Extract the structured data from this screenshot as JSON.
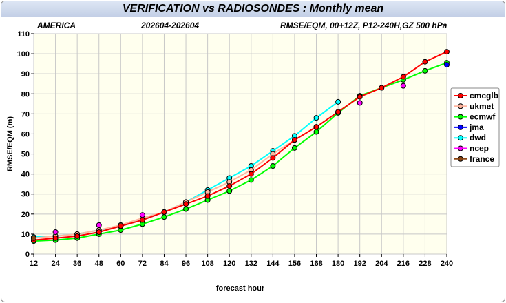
{
  "window": {
    "title": "VERIFICATION vs RADIOSONDES : Monthly mean"
  },
  "chart_data": {
    "type": "line",
    "region": "AMERICA",
    "period": "202604-202604",
    "description": "RMSE/EQM, 00+12Z, P12-240H,GZ 500 hPa",
    "xlabel": "forecast hour",
    "ylabel": "RMSE/EQM (m)",
    "x": [
      12,
      24,
      36,
      48,
      60,
      72,
      84,
      96,
      108,
      120,
      132,
      144,
      156,
      168,
      180,
      192,
      204,
      216,
      228,
      240
    ],
    "xlim": [
      12,
      240
    ],
    "ylim": [
      0,
      110
    ],
    "yticks": [
      0,
      10,
      20,
      30,
      40,
      50,
      60,
      70,
      80,
      90,
      100,
      110
    ],
    "grid": true,
    "legend_position": "right",
    "series": [
      {
        "name": "cmcglb",
        "color": "#ff0000",
        "line": true,
        "values": [
          7,
          8,
          9,
          11,
          14,
          17,
          21,
          25,
          29,
          34,
          40,
          48,
          57,
          63.5,
          71,
          78.5,
          83,
          88.5,
          96,
          101
        ]
      },
      {
        "name": "ukmet",
        "color": "#ffb6a0",
        "line": true,
        "values": [
          8,
          9,
          10,
          12,
          14.5,
          18,
          21,
          26,
          31,
          36,
          42,
          50,
          57,
          63.5,
          71,
          null,
          null,
          null,
          null,
          null
        ]
      },
      {
        "name": "ecmwf",
        "color": "#00ff00",
        "line": true,
        "values": [
          6.5,
          7,
          8,
          10,
          12,
          15,
          18.5,
          22.5,
          27,
          31.5,
          37,
          44,
          53,
          61,
          70.5,
          79,
          83,
          87,
          91.5,
          95.5
        ]
      },
      {
        "name": "jma",
        "color": "#0000ff",
        "line": false,
        "values": [
          null,
          null,
          null,
          null,
          null,
          null,
          null,
          null,
          null,
          null,
          null,
          null,
          null,
          null,
          null,
          null,
          null,
          null,
          null,
          94.5
        ]
      },
      {
        "name": "dwd",
        "color": "#00ffff",
        "line": true,
        "values": [
          8.5,
          9,
          10,
          12,
          14,
          17,
          21,
          26,
          32,
          38,
          44,
          51.5,
          59,
          68,
          76,
          null,
          null,
          null,
          null,
          null
        ]
      },
      {
        "name": "ncep",
        "color": "#ff00ff",
        "line": false,
        "values": [
          null,
          11,
          null,
          14.5,
          null,
          19.5,
          null,
          null,
          null,
          null,
          null,
          null,
          null,
          null,
          null,
          75.5,
          null,
          84,
          null,
          null
        ]
      },
      {
        "name": "france",
        "color": "#8b4513",
        "line": false,
        "values": [
          8,
          null,
          null,
          null,
          null,
          null,
          null,
          null,
          null,
          null,
          null,
          null,
          null,
          null,
          null,
          null,
          null,
          null,
          null,
          null
        ]
      }
    ]
  }
}
